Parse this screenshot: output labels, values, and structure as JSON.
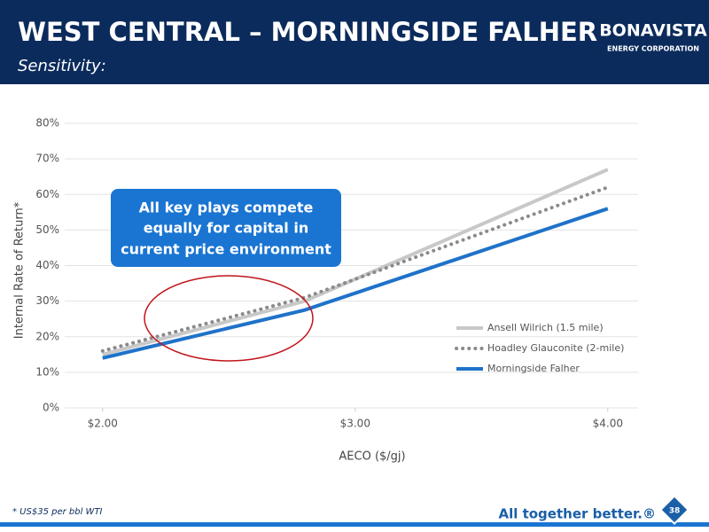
{
  "slide": {
    "title": "WEST CENTRAL – MORNINGSIDE FALHER",
    "subtitle": "Sensitivity:",
    "logo": "BONAVISTA",
    "logo_sub": "ENERGY CORPORATION",
    "callout": [
      "All key plays compete",
      "equally for capital in",
      "current price environment"
    ],
    "footnote": "* US$35 per bbl WTI",
    "tagline": "All together better.®",
    "page": "38"
  },
  "chart_data": {
    "type": "line",
    "x": [
      2.0,
      2.8,
      4.0
    ],
    "series": [
      {
        "name": "Ansell Wilrich (1.5 mile)",
        "color": "#c8c8c8",
        "style": "solid",
        "values": [
          15,
          30,
          67
        ]
      },
      {
        "name": "Hoadley Glauconite (2-mile)",
        "color": "#8a8a8a",
        "style": "dotted",
        "values": [
          16,
          31,
          62
        ]
      },
      {
        "name": "Morningside Falher",
        "color": "#1f72c9",
        "style": "solid",
        "values": [
          14,
          27.5,
          56
        ]
      }
    ],
    "xlabel": "AECO ($/gj)",
    "ylabel": "Internal Rate of Return*",
    "xlim": [
      1.85,
      4.12
    ],
    "xticks": [
      {
        "value": 2,
        "label": "$2.00"
      },
      {
        "value": 3,
        "label": "$3.00"
      },
      {
        "value": 4,
        "label": "$4.00"
      }
    ],
    "ylim": [
      0,
      80
    ],
    "yticks": [
      {
        "value": 0,
        "label": "0%"
      },
      {
        "value": 10,
        "label": "10%"
      },
      {
        "value": 20,
        "label": "20%"
      },
      {
        "value": 30,
        "label": "30%"
      },
      {
        "value": 40,
        "label": "40%"
      },
      {
        "value": 50,
        "label": "50%"
      },
      {
        "value": 60,
        "label": "60%"
      },
      {
        "value": 70,
        "label": "70%"
      },
      {
        "value": 80,
        "label": "80%"
      }
    ],
    "grid": true,
    "legend": "lower right"
  }
}
